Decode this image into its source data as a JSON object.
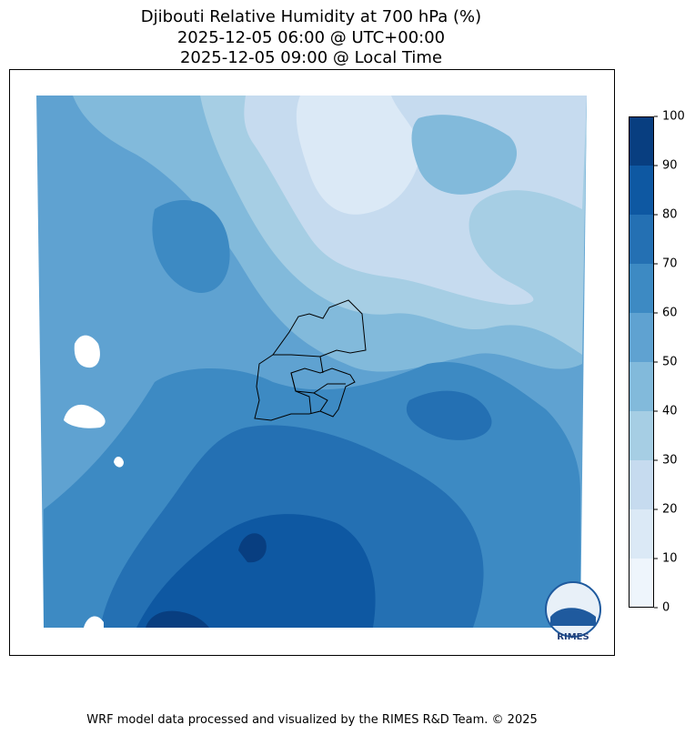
{
  "title": [
    "Djibouti Relative Humidity at 700 hPa (%)",
    "2025-12-05 06:00 @ UTC+00:00",
    "2025-12-05 09:00 @ Local Time"
  ],
  "colorbar": {
    "ticks": [
      0,
      10,
      20,
      30,
      40,
      50,
      60,
      70,
      80,
      90,
      100
    ],
    "colors": [
      "#eef5fc",
      "#dbe9f6",
      "#c6dbef",
      "#a6cee4",
      "#82badb",
      "#5fa2d1",
      "#3d8ac3",
      "#2470b3",
      "#0e58a2",
      "#083e80"
    ]
  },
  "logo": "RIMES",
  "footer": "WRF model data processed and visualized by the RIMES R&D Team. © 2025"
}
